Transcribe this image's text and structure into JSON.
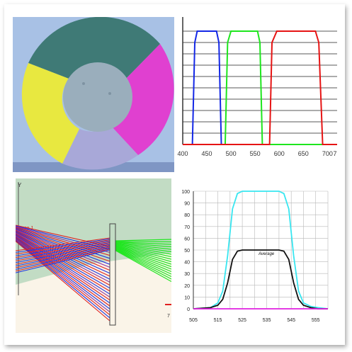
{
  "colors": {
    "wheel_bg": "#a8c1e5",
    "wheel_teal": "#3f7a76",
    "wheel_yellow": "#e8e840",
    "wheel_magenta": "#e040d0",
    "wheel_lavender": "#a8a8d8",
    "wheel_hub": "#9aaebc",
    "blue": "#1428e6",
    "green": "#1ee61e",
    "red": "#e61414",
    "cyan": "#38e6f0",
    "black": "#111111",
    "magenta_line": "#e020e0"
  },
  "panels": {
    "filters": {
      "x_ticks": [
        "400",
        "450",
        "500",
        "550",
        "600",
        "650",
        "700",
        "7"
      ]
    },
    "rays": {
      "axis_label": "Y",
      "source_label": "ource 1",
      "right_tick": "7"
    },
    "transmission": {
      "y_ticks": [
        "100",
        "90",
        "80",
        "70",
        "60",
        "50",
        "40",
        "30",
        "20",
        "10",
        "0"
      ],
      "x_ticks": [
        "505",
        "515",
        "525",
        "535",
        "545",
        "555"
      ],
      "average_label": "Average"
    }
  },
  "chart_data": [
    {
      "type": "line",
      "title": "",
      "xlabel": "",
      "ylabel": "",
      "xlim": [
        400,
        720
      ],
      "ylim": [
        0,
        100
      ],
      "grid": true,
      "series": [
        {
          "color": "#1428e6",
          "x": [
            400,
            420,
            425,
            430,
            470,
            475,
            480,
            720
          ],
          "values": [
            0,
            0,
            90,
            100,
            100,
            90,
            0,
            0
          ]
        },
        {
          "color": "#1ee61e",
          "x": [
            400,
            488,
            493,
            500,
            555,
            560,
            565,
            720
          ],
          "values": [
            0,
            0,
            90,
            100,
            100,
            90,
            0,
            0
          ]
        },
        {
          "color": "#e61414",
          "x": [
            400,
            580,
            585,
            595,
            675,
            682,
            690,
            720
          ],
          "values": [
            0,
            0,
            90,
            100,
            100,
            90,
            0,
            0
          ]
        }
      ]
    },
    {
      "type": "line",
      "title": "",
      "xlabel": "",
      "ylabel": "",
      "xlim": [
        505,
        560
      ],
      "ylim": [
        0,
        100
      ],
      "grid": true,
      "series": [
        {
          "color": "#38e6f0",
          "x": [
            505,
            512,
            515,
            517,
            519,
            521,
            523,
            525,
            540,
            542,
            544,
            546,
            548,
            550,
            553,
            556,
            560
          ],
          "values": [
            0,
            1,
            5,
            15,
            45,
            85,
            98,
            100,
            100,
            98,
            85,
            45,
            15,
            5,
            2,
            1,
            0
          ]
        },
        {
          "color": "#111111",
          "x": [
            505,
            512,
            515,
            517,
            519,
            521,
            523,
            525,
            540,
            542,
            544,
            546,
            548,
            550,
            553,
            556,
            560
          ],
          "values": [
            0,
            1,
            3,
            8,
            22,
            42,
            49,
            50,
            50,
            49,
            42,
            22,
            8,
            3,
            1,
            0,
            0
          ]
        },
        {
          "color": "#e020e0",
          "x": [
            505,
            560
          ],
          "values": [
            0,
            0
          ]
        }
      ]
    }
  ]
}
